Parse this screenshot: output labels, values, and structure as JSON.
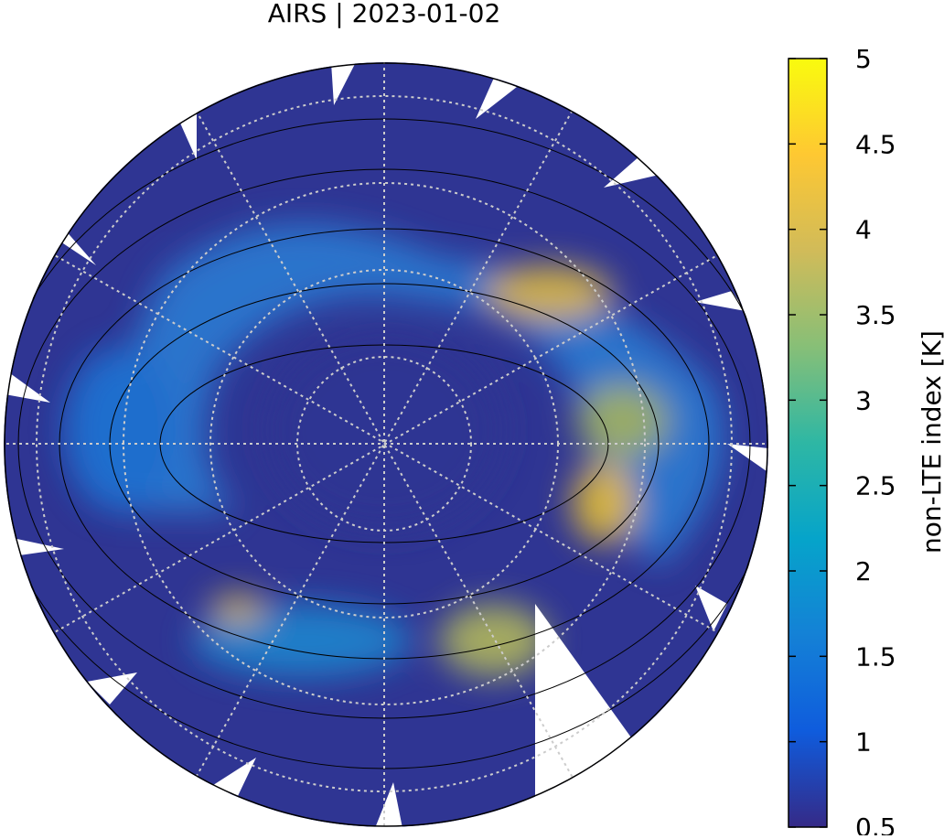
{
  "title": "AIRS | 2023-01-02",
  "colorbar": {
    "label": "non-LTE index [K]",
    "lim": [
      0.5,
      5
    ],
    "ticks": [
      0.5,
      1,
      1.5,
      2,
      2.5,
      3,
      3.5,
      4,
      4.5,
      5
    ],
    "colormap": [
      "#352a87",
      "#0f5cdd",
      "#1481d6",
      "#06a4ca",
      "#2eb7a4",
      "#87bf77",
      "#d1bb59",
      "#fec832",
      "#f9fb0e"
    ]
  }
}
